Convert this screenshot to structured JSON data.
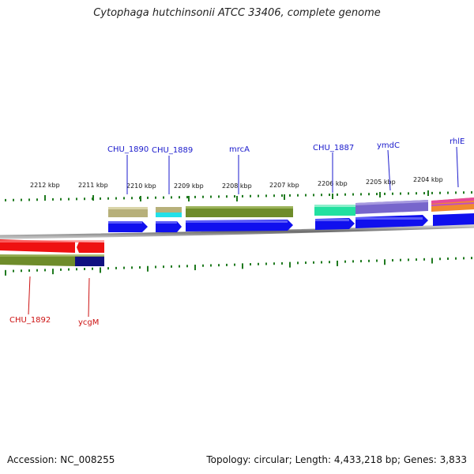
{
  "title": "Cytophaga hutchinsonii ATCC 33406, complete genome",
  "accession": "Accession: NC_008255",
  "summary": "Topology: circular; Length: 4,433,218 bp; Genes: 3,833",
  "colors": {
    "gene_label_forward": "#1a1acc",
    "gene_label_reverse": "#cc1111",
    "tick": "#1f7a1f",
    "backbone": "#888888",
    "cds_arrow": "#1010ee"
  },
  "scale_labels": [
    "2212 kbp",
    "2211 kbp",
    "2210 kbp",
    "2209 kbp",
    "2208 kbp",
    "2207 kbp",
    "2206 kbp",
    "2205 kbp",
    "2204 kbp"
  ],
  "genes_forward": [
    {
      "name": "CHU_1890",
      "feature_color": "#b7b07a"
    },
    {
      "name": "CHU_1889",
      "feature_color": "#b7b07a"
    },
    {
      "name": "mrcA",
      "feature_color": "#6e8c2a"
    },
    {
      "name": "CHU_1887",
      "feature_color": "#22e0a0"
    },
    {
      "name": "ymdC",
      "feature_color": "#7766cc"
    },
    {
      "name": "rhlE",
      "feature_color": "#e64a9a"
    }
  ],
  "genes_reverse": [
    {
      "name": "CHU_1892",
      "feature_color": "#6e8c2a"
    },
    {
      "name": "ycgM",
      "feature_color": "#101080"
    }
  ]
}
